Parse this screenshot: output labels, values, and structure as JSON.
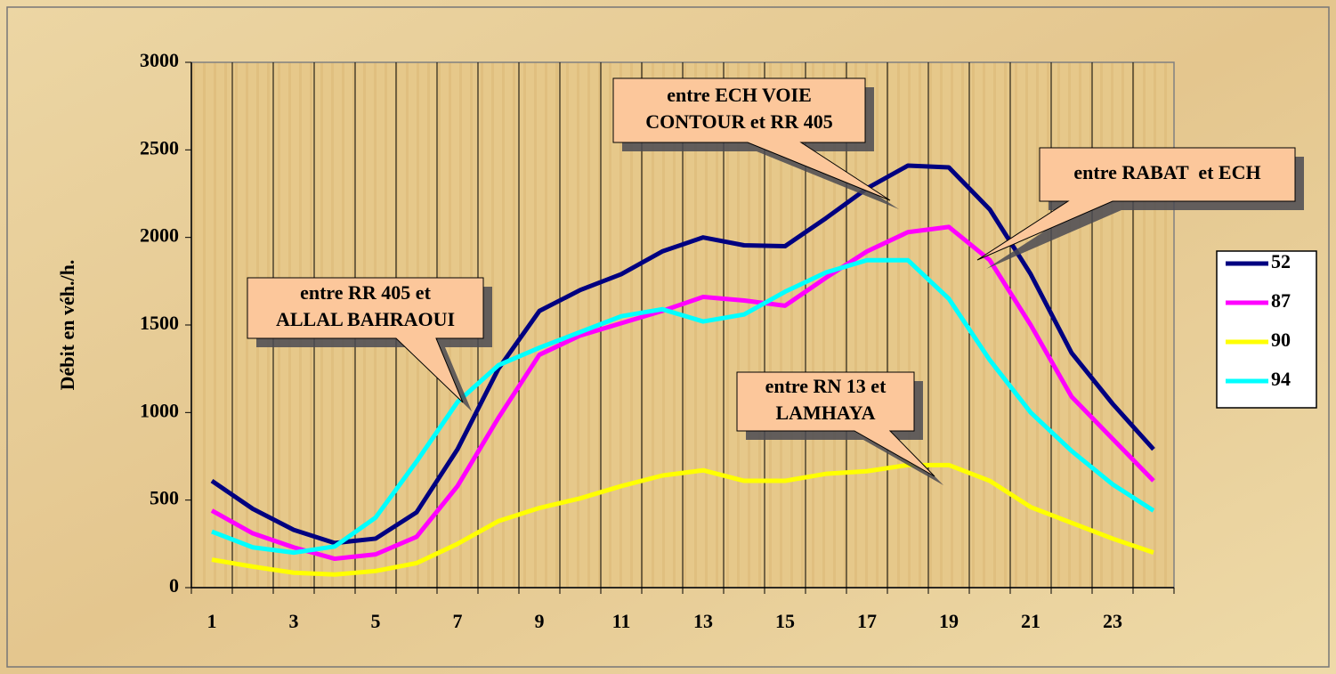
{
  "chart_data": {
    "type": "line",
    "y_label": "Débit en véh./h.",
    "categories": [
      1,
      null,
      3,
      null,
      5,
      null,
      7,
      null,
      9,
      null,
      11,
      null,
      13,
      null,
      15,
      null,
      17,
      null,
      19,
      null,
      21,
      null,
      23,
      null
    ],
    "ylim": [
      0,
      3000
    ],
    "yticks": [
      0,
      500,
      1000,
      1500,
      2000,
      2500,
      3000
    ],
    "legend": "right",
    "series": [
      {
        "name": "52",
        "color": "#000080",
        "values": [
          610,
          450,
          330,
          255,
          280,
          430,
          790,
          1250,
          1580,
          1700,
          1790,
          1920,
          2000,
          1955,
          1950,
          2110,
          2280,
          2410,
          2400,
          2160,
          1790,
          1340,
          1050,
          790
        ]
      },
      {
        "name": "87",
        "color": "#ff00ff",
        "values": [
          440,
          310,
          230,
          165,
          190,
          290,
          580,
          970,
          1330,
          1440,
          1510,
          1580,
          1660,
          1640,
          1610,
          1770,
          1920,
          2030,
          2060,
          1870,
          1500,
          1090,
          850,
          610
        ]
      },
      {
        "name": "90",
        "color": "#ffff00",
        "values": [
          160,
          120,
          85,
          75,
          95,
          140,
          250,
          380,
          455,
          510,
          580,
          640,
          670,
          610,
          610,
          650,
          665,
          700,
          700,
          610,
          460,
          370,
          280,
          200
        ]
      },
      {
        "name": "94",
        "color": "#00ffff",
        "values": [
          320,
          230,
          200,
          235,
          400,
          720,
          1060,
          1270,
          1370,
          1460,
          1550,
          1590,
          1520,
          1560,
          1690,
          1800,
          1870,
          1870,
          1650,
          1300,
          1000,
          780,
          590,
          440
        ]
      }
    ],
    "annotations": [
      {
        "lines": [
          "entre RR 405 et",
          "ALLAL BAHRAOUI"
        ]
      },
      {
        "lines": [
          "entre ECH VOIE",
          "CONTOUR et RR 405"
        ]
      },
      {
        "lines": [
          "entre RABAT  et ECH"
        ]
      },
      {
        "lines": [
          "entre RN 13 et",
          "LAMHAYA"
        ]
      }
    ]
  }
}
